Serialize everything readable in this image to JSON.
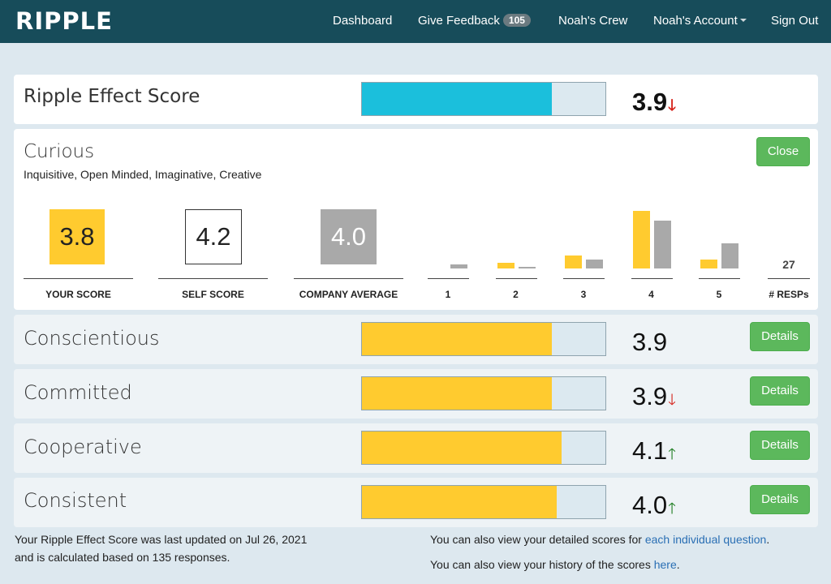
{
  "nav": {
    "logo": "RIPPLE",
    "dashboard": "Dashboard",
    "give_feedback": "Give Feedback",
    "feedback_count": "105",
    "crew": "Noah's Crew",
    "account": "Noah's Account",
    "sign_out": "Sign Out"
  },
  "overall": {
    "title": "Ripple Effect Score",
    "score": "3.9",
    "trend": "down",
    "bar_fraction": 0.78,
    "bar_color": "#1bbfdc"
  },
  "expanded": {
    "title": "Curious",
    "subtitle": "Inquisitive, Open Minded, Imaginative, Creative",
    "close_label": "Close",
    "your_score": {
      "value": "3.8",
      "label": "YOUR SCORE",
      "color": "#ffcb2f"
    },
    "self_score": {
      "value": "4.2",
      "label": "SELF SCORE"
    },
    "company_average": {
      "value": "4.0",
      "label": "COMPANY AVERAGE",
      "color": "#a9a9a9"
    },
    "histogram": {
      "bins": [
        "1",
        "2",
        "3",
        "4",
        "5"
      ],
      "your_heights": [
        0,
        0.1,
        0.22,
        1.0,
        0.16
      ],
      "company_heights": [
        0.07,
        0.03,
        0.15,
        0.83,
        0.43
      ],
      "your_color": "#ffcb2f",
      "company_color": "#a9a9a9",
      "responses_label": "# RESPs",
      "responses": "27"
    }
  },
  "rows": [
    {
      "title": "Conscientious",
      "score": "3.9",
      "trend": "",
      "bar_fraction": 0.78,
      "details_label": "Details"
    },
    {
      "title": "Committed",
      "score": "3.9",
      "trend": "down",
      "bar_fraction": 0.78,
      "details_label": "Details"
    },
    {
      "title": "Cooperative",
      "score": "4.1",
      "trend": "up",
      "bar_fraction": 0.82,
      "details_label": "Details"
    },
    {
      "title": "Consistent",
      "score": "4.0",
      "trend": "up",
      "bar_fraction": 0.8,
      "details_label": "Details"
    }
  ],
  "bar_color_category": "#ffcb2f",
  "footer": {
    "left_line1": "Your Ripple Effect Score was last updated on Jul 26, 2021",
    "left_line2": "and is calculated based on 135 responses.",
    "right_line1_text": "You can also view your detailed scores for ",
    "right_line1_link": "each individual question",
    "right_line1_end": ".",
    "right_line2_text": "You can also view your history of the scores ",
    "right_line2_link": "here",
    "right_line2_end": "."
  }
}
